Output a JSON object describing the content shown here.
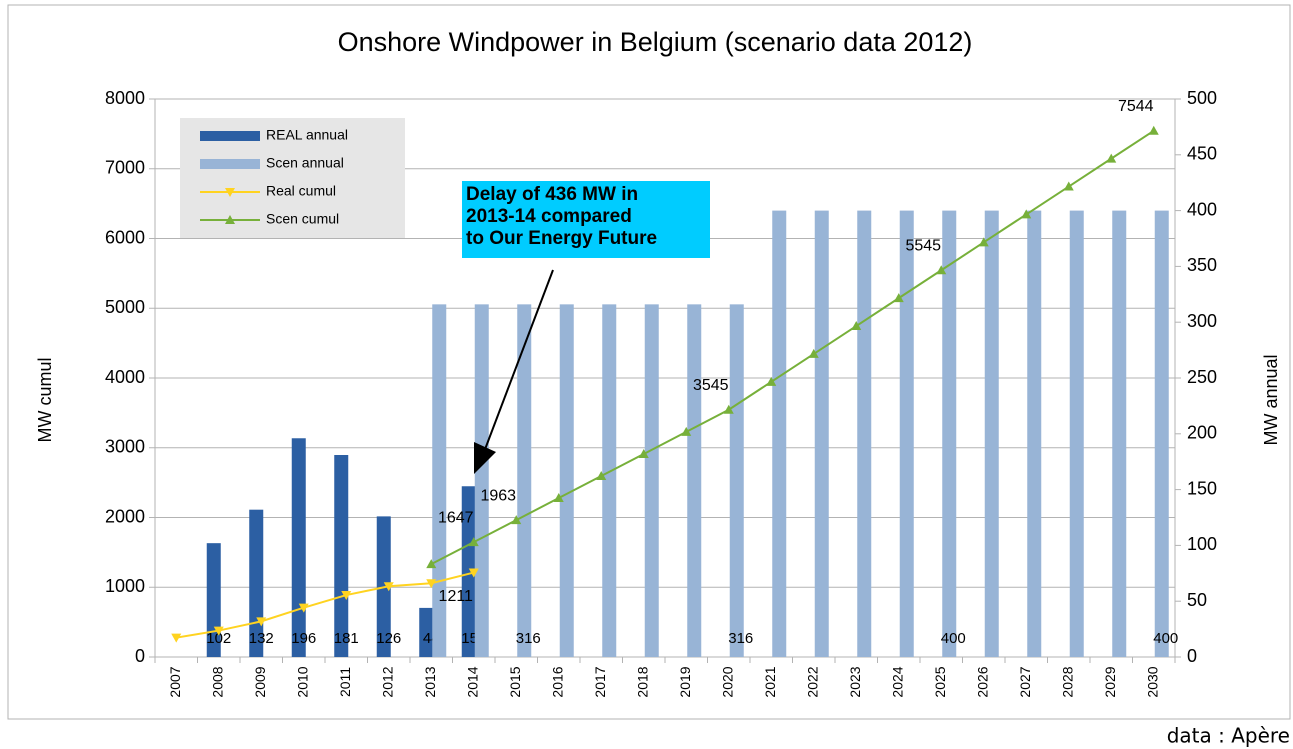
{
  "chart_data": {
    "type": "bar",
    "title": "Onshore Windpower in Belgium (scenario data 2012)",
    "ylabel": "MW cumul",
    "y2label": "MW annual",
    "categories": [
      "2007",
      "2008",
      "2009",
      "2010",
      "2011",
      "2012",
      "2013",
      "2014",
      "2015",
      "2016",
      "2017",
      "2018",
      "2019",
      "2020",
      "2021",
      "2022",
      "2023",
      "2024",
      "2025",
      "2026",
      "2027",
      "2028",
      "2029",
      "2030"
    ],
    "ylim": [
      0,
      8000
    ],
    "yticks": [
      0,
      1000,
      2000,
      3000,
      4000,
      5000,
      6000,
      7000,
      8000
    ],
    "y2lim": [
      0,
      500
    ],
    "y2ticks": [
      0,
      50,
      100,
      150,
      200,
      250,
      300,
      350,
      400,
      450,
      500
    ],
    "grid": true,
    "series": [
      {
        "name": "REAL annual",
        "type": "bar",
        "axis": "y2",
        "color": "#2c5fa3",
        "values": [
          null,
          102,
          132,
          196,
          181,
          126,
          44,
          153,
          null,
          null,
          null,
          null,
          null,
          null,
          null,
          null,
          null,
          null,
          null,
          null,
          null,
          null,
          null,
          null
        ],
        "value_labels": [
          null,
          "102",
          "132",
          "196",
          "181",
          "126",
          "44",
          "153",
          null,
          null,
          null,
          null,
          null,
          null,
          null,
          null,
          null,
          null,
          null,
          null,
          null,
          null,
          null,
          null
        ]
      },
      {
        "name": "Scen annual",
        "type": "bar",
        "axis": "y2",
        "color": "#98b4d6",
        "values": [
          null,
          null,
          null,
          null,
          null,
          null,
          316,
          316,
          316,
          316,
          316,
          316,
          316,
          316,
          400,
          400,
          400,
          400,
          400,
          400,
          400,
          400,
          400,
          400
        ],
        "value_labels": [
          null,
          null,
          null,
          null,
          null,
          null,
          null,
          null,
          "316",
          null,
          null,
          null,
          null,
          "316",
          null,
          null,
          null,
          null,
          "400",
          null,
          null,
          null,
          null,
          "400"
        ]
      },
      {
        "name": "Real cumul",
        "type": "line",
        "marker": "triangle-down",
        "color": "#ffd320",
        "values": [
          277,
          379,
          511,
          707,
          888,
          1014,
          1058,
          1211,
          null,
          null,
          null,
          null,
          null,
          null,
          null,
          null,
          null,
          null,
          null,
          null,
          null,
          null,
          null,
          null
        ],
        "value_labels": [
          null,
          null,
          null,
          null,
          null,
          null,
          null,
          "1211",
          null,
          null,
          null,
          null,
          null,
          null,
          null,
          null,
          null,
          null,
          null,
          null,
          null,
          null,
          null,
          null
        ]
      },
      {
        "name": "Scen cumul",
        "type": "line",
        "marker": "triangle-up",
        "color": "#77b03a",
        "values": [
          null,
          null,
          null,
          null,
          null,
          null,
          1331,
          1647,
          1963,
          2279,
          2595,
          2911,
          3227,
          3545,
          3945,
          4345,
          4745,
          5145,
          5545,
          5945,
          6345,
          6745,
          7145,
          7544
        ],
        "value_labels": [
          null,
          null,
          null,
          null,
          null,
          null,
          null,
          "1647",
          "1963",
          null,
          null,
          null,
          null,
          "3545",
          null,
          null,
          null,
          null,
          "5545",
          null,
          null,
          null,
          null,
          "7544"
        ]
      }
    ],
    "annotation": [
      "Delay of 436 MW in",
      "2013-14 compared",
      "to Our Energy Future"
    ],
    "source": "data : Apère"
  }
}
